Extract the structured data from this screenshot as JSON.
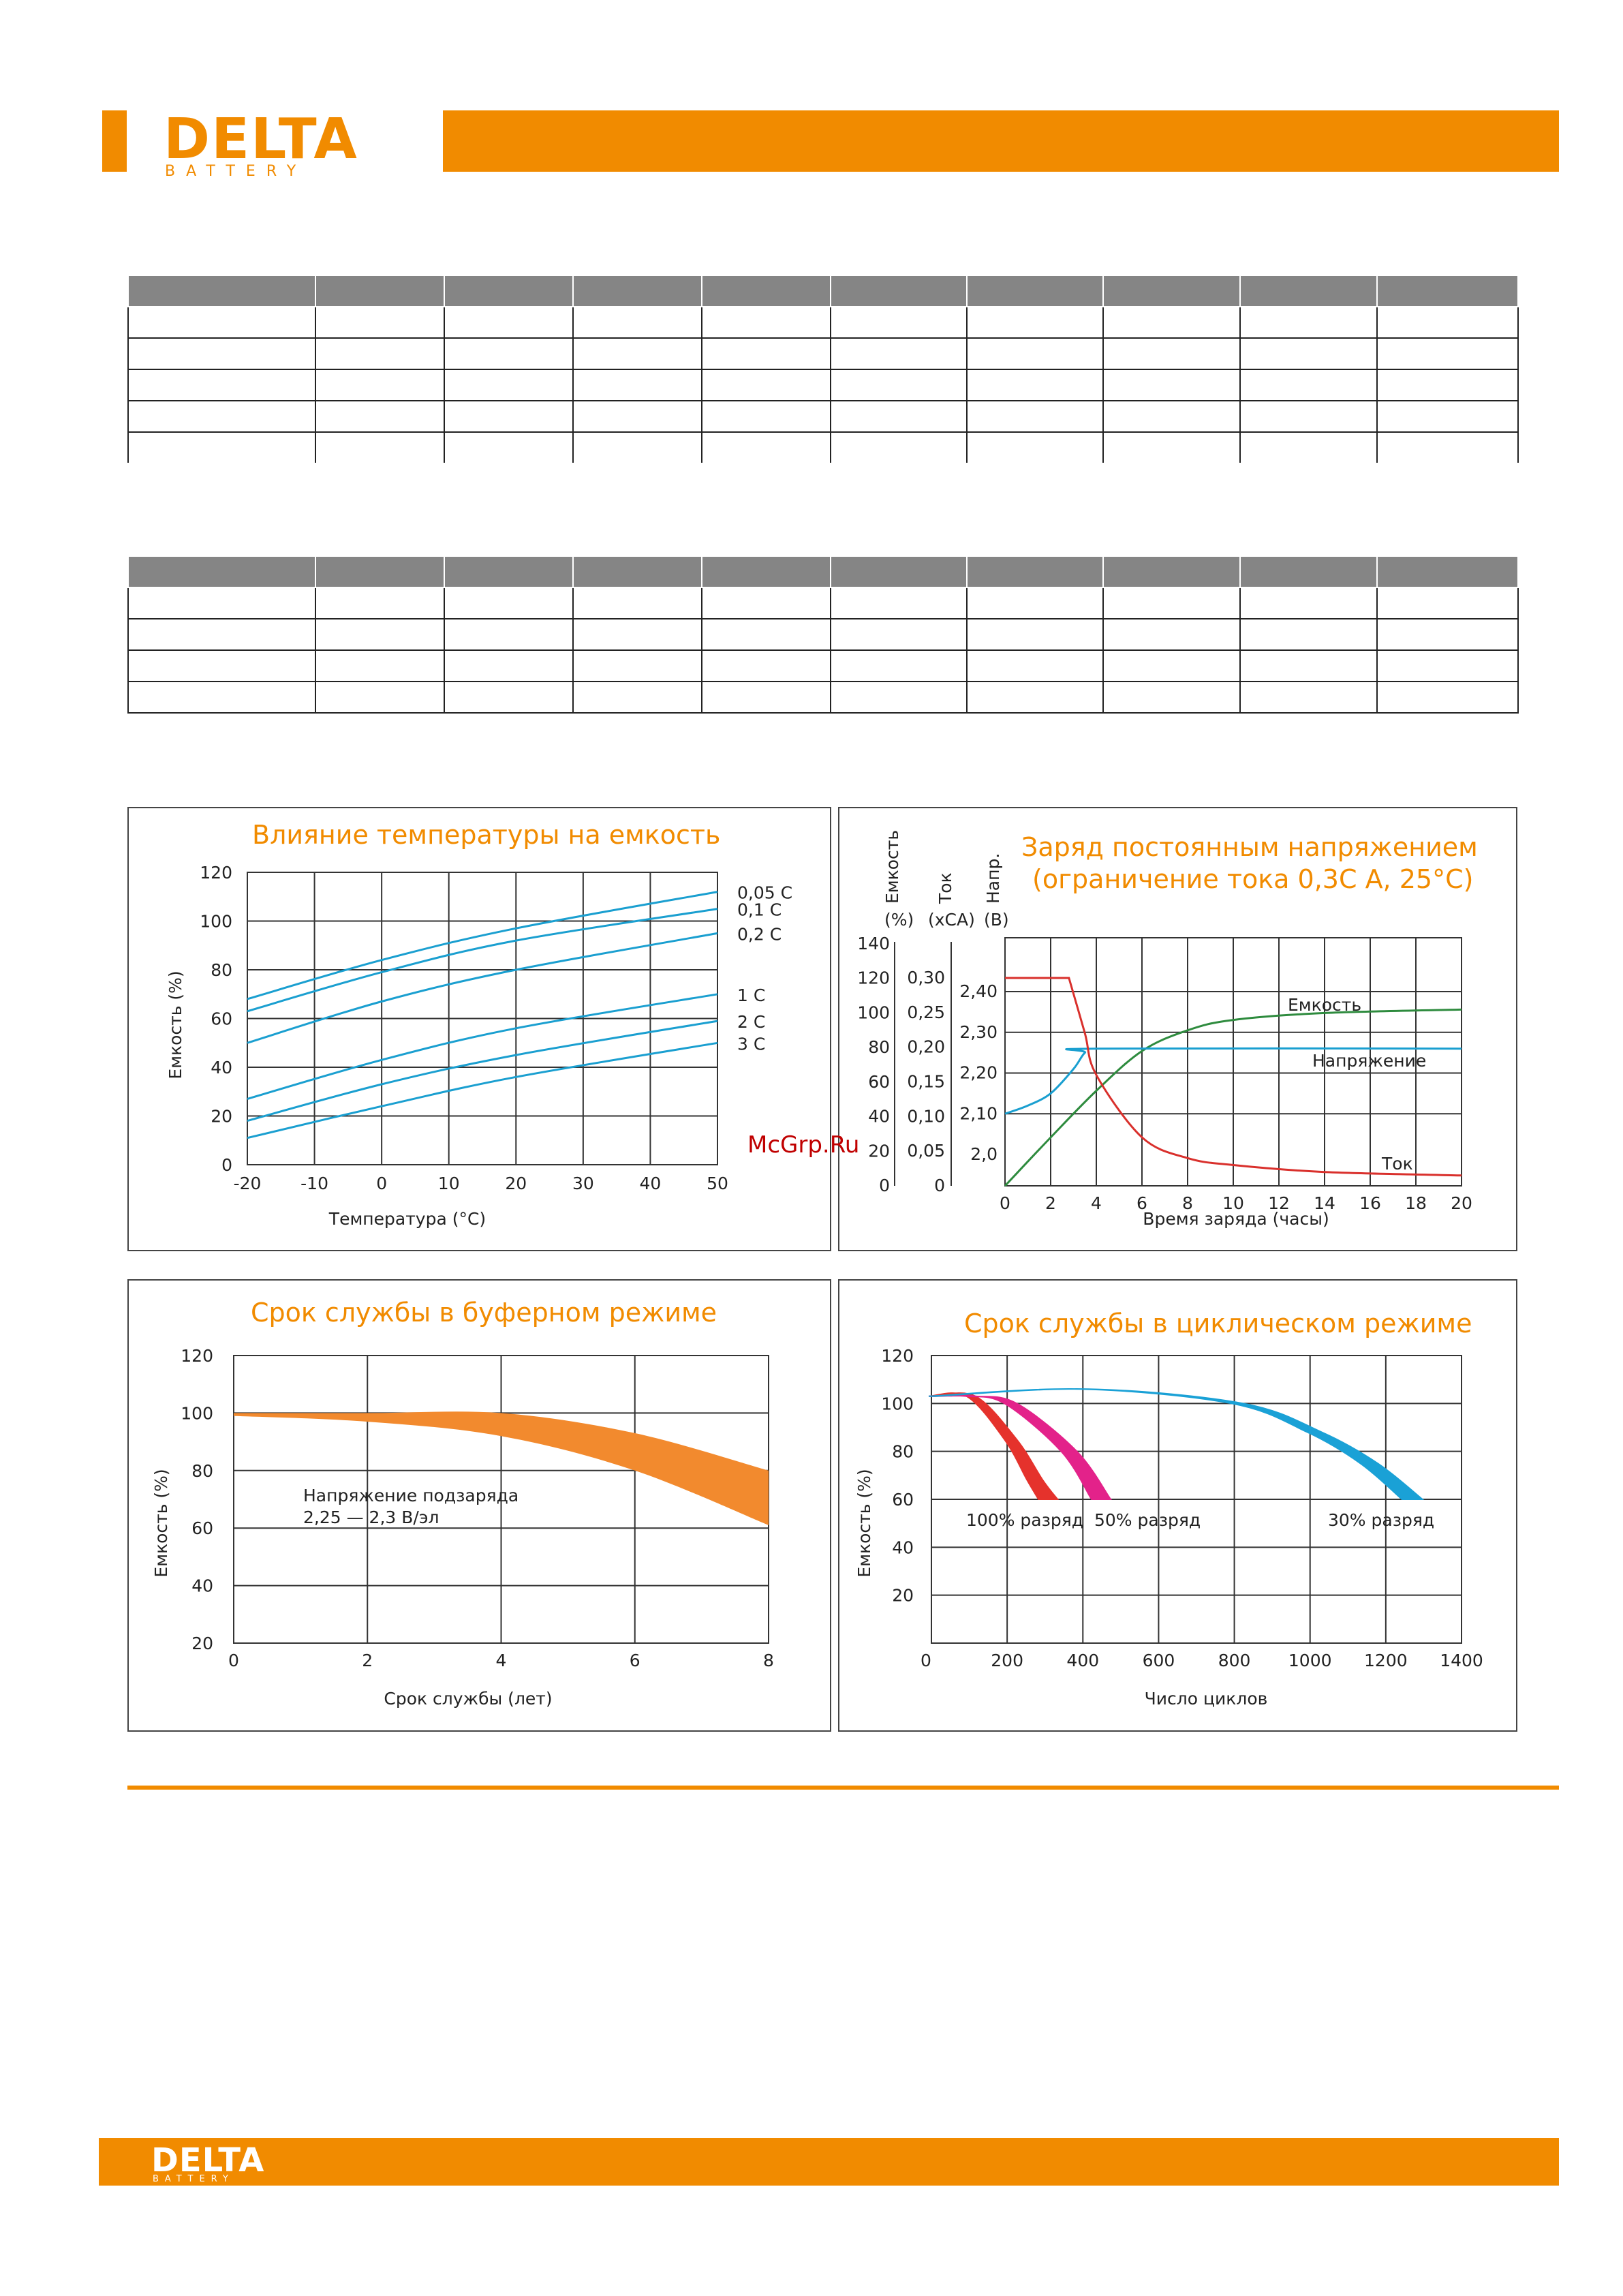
{
  "brand": {
    "name": "DELTA",
    "sub": "BATTERY",
    "color": "#f18b00"
  },
  "watermark": "McGrp.Ru",
  "tables": [
    {
      "rows": 5,
      "cols": 10
    },
    {
      "rows": 5,
      "cols": 10
    }
  ],
  "charts": {
    "temperature": {
      "title": "Влияние температуры на емкость",
      "xlabel": "Температура (°С)",
      "ylabel": "Емкость (%)",
      "xticks": [
        "-20",
        "-10",
        "0",
        "10",
        "20",
        "30",
        "40",
        "50"
      ],
      "yticks": [
        "0",
        "20",
        "40",
        "60",
        "80",
        "100",
        "120"
      ],
      "series_labels": [
        "0,05 С",
        "0,1 С",
        "0,2 С",
        "1 С",
        "2 С",
        "3 С"
      ]
    },
    "charge": {
      "title_line1": "Заряд постоянным напряжением",
      "title_line2": "(ограничение тока 0,3С А, 25°С)",
      "axis1_title": "Емкость",
      "axis1_unit": "(%)",
      "axis2_title": "Ток",
      "axis2_unit": "(хСА)",
      "axis3_title": "Напр.",
      "axis3_unit": "(В)",
      "cap_ticks": [
        "0",
        "20",
        "40",
        "60",
        "80",
        "100",
        "120",
        "140"
      ],
      "cur_ticks": [
        "0",
        "0,05",
        "0,10",
        "0,15",
        "0,20",
        "0,25",
        "0,30"
      ],
      "volt_ticks": [
        "2,0",
        "2,10",
        "2,20",
        "2,30",
        "2,40"
      ],
      "xticks": [
        "0",
        "2",
        "4",
        "6",
        "8",
        "10",
        "12",
        "14",
        "16",
        "18",
        "20"
      ],
      "xlabel": "Время заряда (часы)",
      "legend_capacity": "Емкость",
      "legend_voltage": "Напряжение",
      "legend_current": "Ток"
    },
    "float_life": {
      "title": "Срок службы в буферном режиме",
      "xlabel": "Срок службы (лет)",
      "ylabel": "Емкость (%)",
      "xticks": [
        "0",
        "2",
        "4",
        "6",
        "8"
      ],
      "yticks": [
        "20",
        "40",
        "60",
        "80",
        "100",
        "120"
      ],
      "note_line1": "Напряжение подзаряда",
      "note_line2": "2,25 — 2,3 В/эл"
    },
    "cycle_life": {
      "title": "Срок службы в циклическом режиме",
      "xlabel": "Число циклов",
      "ylabel": "Емкость (%)",
      "xticks": [
        "0",
        "200",
        "400",
        "600",
        "800",
        "1000",
        "1200",
        "1400"
      ],
      "yticks": [
        "20",
        "40",
        "60",
        "80",
        "100",
        "120"
      ],
      "label_100": "100% разряд",
      "label_50": "50% разряд",
      "label_30": "30% разряд"
    }
  },
  "chart_data": [
    {
      "type": "line",
      "title": "Влияние температуры на емкость",
      "xlabel": "Температура (°С)",
      "ylabel": "Емкость (%)",
      "xlim": [
        -20,
        50
      ],
      "ylim": [
        0,
        120
      ],
      "series": [
        {
          "name": "0,05 С",
          "x": [
            -20,
            0,
            20,
            50
          ],
          "values": [
            68,
            84,
            97,
            112
          ]
        },
        {
          "name": "0,1 С",
          "x": [
            -20,
            0,
            20,
            50
          ],
          "values": [
            63,
            79,
            92,
            105
          ]
        },
        {
          "name": "0,2 С",
          "x": [
            -20,
            0,
            20,
            50
          ],
          "values": [
            50,
            67,
            80,
            95
          ]
        },
        {
          "name": "1 С",
          "x": [
            -20,
            0,
            20,
            50
          ],
          "values": [
            27,
            43,
            56,
            70
          ]
        },
        {
          "name": "2 С",
          "x": [
            -20,
            0,
            20,
            50
          ],
          "values": [
            18,
            33,
            45,
            59
          ]
        },
        {
          "name": "3 С",
          "x": [
            -20,
            0,
            20,
            50
          ],
          "values": [
            11,
            24,
            36,
            50
          ]
        }
      ]
    },
    {
      "type": "line",
      "title": "Заряд постоянным напряжением (ограничение тока 0,3С А, 25°С)",
      "xlabel": "Время заряда (часы)",
      "xlim": [
        0,
        20
      ],
      "series": [
        {
          "name": "Емкость",
          "unit": "%",
          "x": [
            0,
            2,
            4,
            6,
            8,
            10,
            14,
            20
          ],
          "values": [
            0,
            28,
            55,
            78,
            90,
            96,
            100,
            102
          ]
        },
        {
          "name": "Напряжение",
          "unit": "В",
          "x": [
            0,
            1,
            2,
            3,
            3.5,
            4,
            20
          ],
          "values": [
            2.1,
            2.12,
            2.15,
            2.21,
            2.25,
            2.26,
            2.26
          ]
        },
        {
          "name": "Ток",
          "unit": "хСА",
          "x": [
            0,
            2.8,
            3.5,
            4,
            6,
            8,
            10,
            14,
            20
          ],
          "values": [
            0.3,
            0.3,
            0.22,
            0.16,
            0.07,
            0.04,
            0.03,
            0.02,
            0.015
          ]
        }
      ]
    },
    {
      "type": "area",
      "title": "Срок службы в буферном режиме",
      "xlabel": "Срок службы (лет)",
      "ylabel": "Емкость (%)",
      "xlim": [
        0,
        8
      ],
      "ylim": [
        20,
        120
      ],
      "series": [
        {
          "name": "upper",
          "x": [
            0,
            2,
            4,
            6,
            8
          ],
          "values": [
            100,
            100,
            100,
            93,
            80
          ]
        },
        {
          "name": "lower",
          "x": [
            0,
            2,
            4,
            6,
            8
          ],
          "values": [
            99,
            97,
            92,
            80,
            61
          ]
        }
      ]
    },
    {
      "type": "line",
      "title": "Срок службы в циклическом режиме",
      "xlabel": "Число циклов",
      "ylabel": "Емкость (%)",
      "xlim": [
        0,
        1400
      ],
      "ylim": [
        0,
        120
      ],
      "series": [
        {
          "name": "100% разряд",
          "x": [
            0,
            100,
            200,
            260,
            290
          ],
          "values": [
            103,
            103,
            85,
            68,
            60
          ]
        },
        {
          "name": "50% разряд",
          "x": [
            0,
            100,
            200,
            350,
            430
          ],
          "values": [
            103,
            103,
            100,
            80,
            60
          ]
        },
        {
          "name": "30% разряд",
          "x": [
            0,
            400,
            800,
            1000,
            1140,
            1250
          ],
          "values": [
            103,
            106,
            100,
            88,
            75,
            60
          ]
        }
      ]
    }
  ]
}
